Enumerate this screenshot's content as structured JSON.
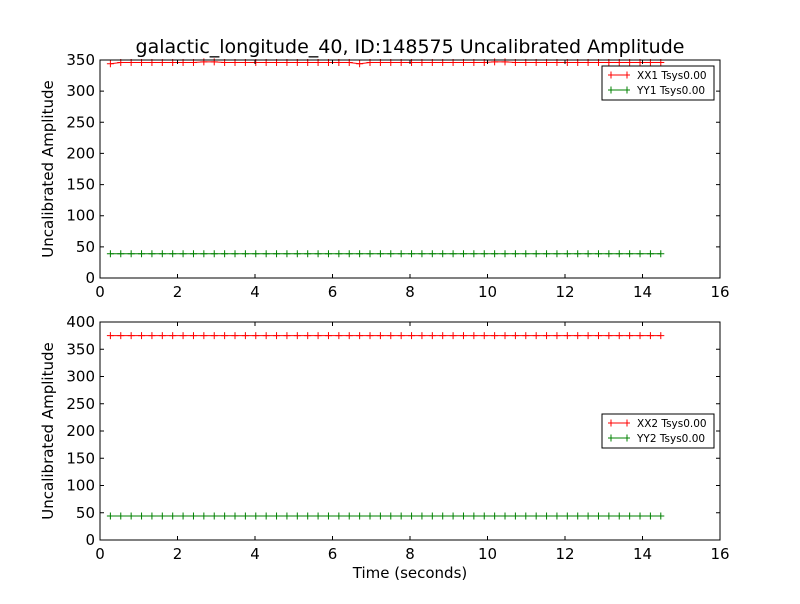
{
  "chart_data": [
    {
      "type": "line",
      "title": "galactic_longitude_40, ID:148575 Uncalibrated Amplitude",
      "xlabel": "",
      "ylabel": "Uncalibrated Amplitude",
      "xlim": [
        0,
        16
      ],
      "ylim": [
        0,
        350
      ],
      "xticks": [
        "0",
        "2",
        "4",
        "6",
        "8",
        "10",
        "12",
        "14",
        "16"
      ],
      "yticks": [
        "0",
        "50",
        "100",
        "150",
        "200",
        "250",
        "300",
        "350"
      ],
      "legend_position": "top-right",
      "x_start": 0.268,
      "x_step": 0.268,
      "n_points": 54,
      "series": [
        {
          "name": "XX1 Tsys0.00",
          "color": "#ff0000",
          "values": [
            344,
            346,
            346,
            346,
            346,
            346,
            346,
            346,
            346,
            347,
            347,
            346,
            346,
            346,
            346,
            346,
            346,
            346,
            346,
            346,
            346,
            346,
            346,
            346,
            344,
            346,
            346,
            346,
            346,
            346,
            346,
            346,
            346,
            346,
            346,
            346,
            346,
            347,
            347,
            346,
            346,
            346,
            346,
            346,
            346,
            346,
            346,
            346,
            346,
            346,
            346,
            346,
            346,
            346
          ]
        },
        {
          "name": "YY1 Tsys0.00",
          "color": "#008000",
          "values": [
            39,
            39,
            39,
            39,
            39,
            39,
            39,
            39,
            39,
            39,
            39,
            39,
            39,
            39,
            39,
            39,
            39,
            39,
            39,
            39,
            39,
            39,
            39,
            39,
            39,
            39,
            39,
            39,
            39,
            39,
            39,
            39,
            39,
            39,
            39,
            39,
            39,
            39,
            39,
            39,
            39,
            39,
            39,
            39,
            39,
            39,
            39,
            39,
            39,
            39,
            39,
            39,
            39,
            39
          ]
        }
      ]
    },
    {
      "type": "line",
      "title": "",
      "xlabel": "Time (seconds)",
      "ylabel": "Uncalibrated Amplitude",
      "xlim": [
        0,
        16
      ],
      "ylim": [
        0,
        400
      ],
      "xticks": [
        "0",
        "2",
        "4",
        "6",
        "8",
        "10",
        "12",
        "14",
        "16"
      ],
      "yticks": [
        "0",
        "50",
        "100",
        "150",
        "200",
        "250",
        "300",
        "350",
        "400"
      ],
      "legend_position": "center-right",
      "x_start": 0.268,
      "x_step": 0.268,
      "n_points": 54,
      "series": [
        {
          "name": "XX2 Tsys0.00",
          "color": "#ff0000",
          "values": [
            375,
            375,
            375,
            375,
            375,
            375,
            375,
            375,
            375,
            375,
            375,
            375,
            375,
            375,
            375,
            375,
            375,
            375,
            375,
            375,
            375,
            375,
            375,
            375,
            375,
            375,
            375,
            375,
            375,
            375,
            375,
            375,
            375,
            375,
            375,
            375,
            375,
            375,
            375,
            375,
            375,
            375,
            375,
            375,
            375,
            375,
            375,
            375,
            375,
            375,
            375,
            375,
            375,
            375
          ]
        },
        {
          "name": "YY2 Tsys0.00",
          "color": "#008000",
          "values": [
            44,
            44,
            44,
            44,
            44,
            44,
            44,
            44,
            44,
            44,
            44,
            44,
            44,
            44,
            44,
            44,
            44,
            44,
            44,
            44,
            44,
            44,
            44,
            44,
            44,
            44,
            44,
            44,
            44,
            44,
            44,
            44,
            44,
            44,
            44,
            44,
            44,
            44,
            44,
            44,
            44,
            44,
            44,
            44,
            44,
            44,
            44,
            44,
            44,
            44,
            44,
            44,
            44,
            44
          ]
        }
      ]
    }
  ]
}
